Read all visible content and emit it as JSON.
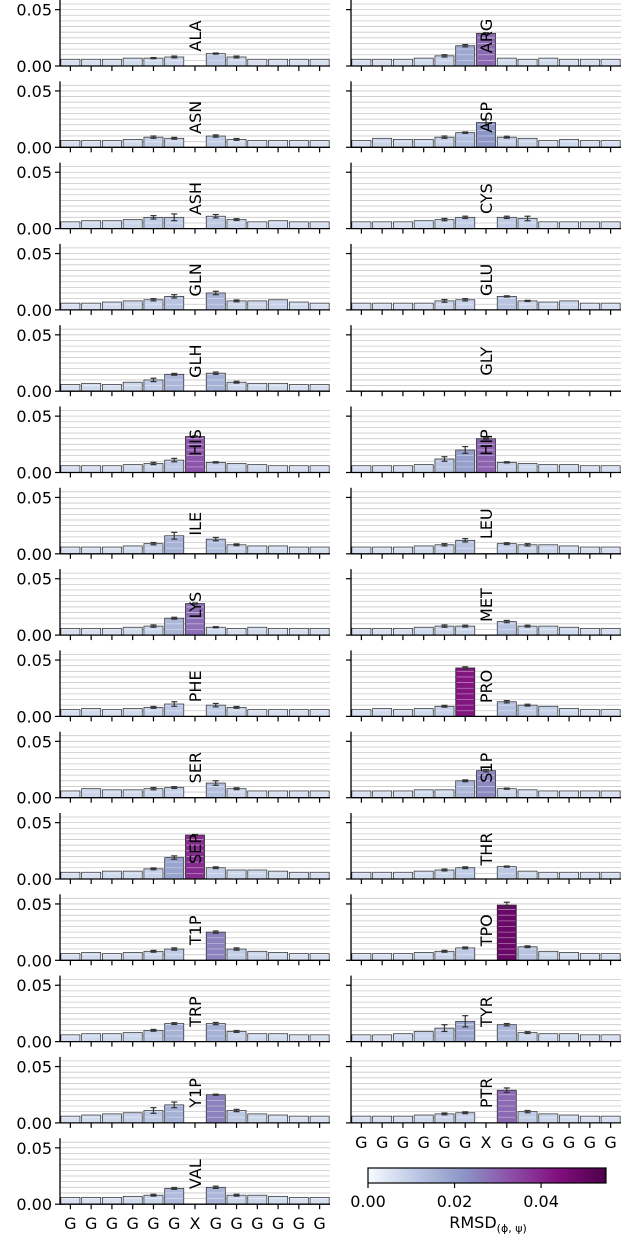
{
  "chart_data": {
    "type": "bar",
    "categories": [
      "G",
      "G",
      "G",
      "G",
      "G",
      "G",
      "X",
      "G",
      "G",
      "G",
      "G",
      "G",
      "G"
    ],
    "ylim": [
      0,
      0.055
    ],
    "yticks": [
      0.0,
      0.05
    ],
    "ytick_labels": [
      "0.00",
      "0.05"
    ],
    "grid": true,
    "colorbar": {
      "range": [
        0,
        0.055
      ],
      "ticks": [
        0.0,
        0.02,
        0.04
      ],
      "tick_labels": [
        "0.00",
        "0.02",
        "0.04"
      ],
      "label": "RMSD",
      "label_sub": "(ϕ, ψ)",
      "colors": [
        "#f7fbff",
        "#bcc8e4",
        "#8c96c6",
        "#8c4fa8",
        "#810f7c",
        "#4d004b"
      ]
    },
    "panels": [
      {
        "name": "ALA",
        "values": [
          0.006,
          0.006,
          0.006,
          0.007,
          0.007,
          0.008,
          null,
          0.011,
          0.008,
          0.006,
          0.006,
          0.006,
          0.006
        ],
        "errors": [
          0,
          0,
          0,
          0,
          0.0005,
          0.0008,
          0,
          0.0005,
          0.0008,
          0,
          0,
          0,
          0
        ]
      },
      {
        "name": "ARG",
        "values": [
          0.006,
          0.006,
          0.006,
          0.007,
          0.009,
          0.018,
          0.029,
          0.007,
          0.006,
          0.007,
          0.006,
          0.006,
          0.006
        ],
        "errors": [
          0,
          0,
          0,
          0,
          0.001,
          0.001,
          0.0005,
          0,
          0,
          0,
          0,
          0,
          0
        ]
      },
      {
        "name": "ASN",
        "values": [
          0.006,
          0.006,
          0.006,
          0.007,
          0.009,
          0.008,
          null,
          0.01,
          0.007,
          0.006,
          0.006,
          0.006,
          0.006
        ],
        "errors": [
          0,
          0,
          0,
          0,
          0.001,
          0.0008,
          0,
          0.001,
          0.0008,
          0,
          0,
          0,
          0
        ]
      },
      {
        "name": "ASP",
        "values": [
          0.006,
          0.008,
          0.007,
          0.007,
          0.009,
          0.013,
          0.022,
          0.009,
          0.008,
          0.006,
          0.007,
          0.006,
          0.006
        ],
        "errors": [
          0,
          0,
          0,
          0,
          0.001,
          0.0006,
          0.003,
          0.0008,
          0,
          0,
          0,
          0,
          0
        ]
      },
      {
        "name": "ASH",
        "values": [
          0.006,
          0.007,
          0.007,
          0.008,
          0.01,
          0.01,
          null,
          0.011,
          0.008,
          0.006,
          0.007,
          0.006,
          0.006
        ],
        "errors": [
          0,
          0,
          0,
          0,
          0.0015,
          0.003,
          0,
          0.0015,
          0.0008,
          0,
          0,
          0,
          0
        ]
      },
      {
        "name": "CYS",
        "values": [
          0.006,
          0.006,
          0.006,
          0.007,
          0.008,
          0.01,
          null,
          0.01,
          0.009,
          0.006,
          0.006,
          0.006,
          0.006
        ],
        "errors": [
          0,
          0,
          0,
          0,
          0.001,
          0.001,
          0,
          0.001,
          0.002,
          0,
          0,
          0,
          0
        ]
      },
      {
        "name": "GLN",
        "values": [
          0.006,
          0.006,
          0.007,
          0.008,
          0.009,
          0.012,
          null,
          0.015,
          0.008,
          0.008,
          0.009,
          0.007,
          0.006
        ],
        "errors": [
          0,
          0,
          0,
          0,
          0.001,
          0.0015,
          0,
          0.0015,
          0.0008,
          0,
          0,
          0,
          0
        ]
      },
      {
        "name": "GLU",
        "values": [
          0.006,
          0.006,
          0.006,
          0.006,
          0.008,
          0.009,
          null,
          0.012,
          0.008,
          0.007,
          0.008,
          0.006,
          0.006
        ],
        "errors": [
          0,
          0,
          0,
          0,
          0.0012,
          0.001,
          0,
          0.0005,
          0.0005,
          0,
          0,
          0,
          0
        ]
      },
      {
        "name": "GLH",
        "values": [
          0.006,
          0.007,
          0.006,
          0.008,
          0.01,
          0.015,
          null,
          0.016,
          0.008,
          0.007,
          0.007,
          0.006,
          0.006
        ],
        "errors": [
          0,
          0,
          0,
          0,
          0.0015,
          0.0008,
          0,
          0.001,
          0.0008,
          0,
          0,
          0,
          0
        ]
      },
      {
        "name": "GLY",
        "values": [
          0,
          0,
          0,
          0,
          0,
          0,
          null,
          0,
          0,
          0,
          0,
          0,
          0
        ],
        "errors": [
          0,
          0,
          0,
          0,
          0,
          0,
          0,
          0,
          0,
          0,
          0,
          0,
          0
        ]
      },
      {
        "name": "HIS",
        "values": [
          0.006,
          0.006,
          0.006,
          0.007,
          0.008,
          0.011,
          0.032,
          0.009,
          0.008,
          0.007,
          0.006,
          0.006,
          0.006
        ],
        "errors": [
          0,
          0,
          0,
          0,
          0.001,
          0.0015,
          0.0005,
          0.0005,
          0,
          0,
          0,
          0,
          0
        ]
      },
      {
        "name": "HIP",
        "values": [
          0.006,
          0.006,
          0.006,
          0.007,
          0.012,
          0.02,
          0.03,
          0.009,
          0.008,
          0.007,
          0.007,
          0.006,
          0.006
        ],
        "errors": [
          0,
          0,
          0,
          0,
          0.002,
          0.003,
          0.0005,
          0.0005,
          0,
          0,
          0,
          0,
          0
        ]
      },
      {
        "name": "ILE",
        "values": [
          0.006,
          0.006,
          0.006,
          0.007,
          0.009,
          0.016,
          null,
          0.013,
          0.008,
          0.007,
          0.007,
          0.006,
          0.006
        ],
        "errors": [
          0,
          0,
          0,
          0,
          0.001,
          0.003,
          0,
          0.0015,
          0.0008,
          0,
          0,
          0,
          0
        ]
      },
      {
        "name": "LEU",
        "values": [
          0.006,
          0.006,
          0.006,
          0.007,
          0.008,
          0.012,
          null,
          0.009,
          0.008,
          0.008,
          0.007,
          0.006,
          0.006
        ],
        "errors": [
          0,
          0,
          0,
          0,
          0.001,
          0.0015,
          0,
          0.0008,
          0.001,
          0,
          0,
          0,
          0
        ]
      },
      {
        "name": "LYS",
        "values": [
          0.006,
          0.006,
          0.006,
          0.007,
          0.008,
          0.015,
          0.028,
          0.007,
          0.006,
          0.007,
          0.006,
          0.006,
          0.006
        ],
        "errors": [
          0,
          0,
          0,
          0,
          0.001,
          0.0008,
          0.0005,
          0.0005,
          0,
          0,
          0,
          0,
          0
        ]
      },
      {
        "name": "MET",
        "values": [
          0.006,
          0.006,
          0.006,
          0.007,
          0.008,
          0.008,
          null,
          0.012,
          0.008,
          0.008,
          0.007,
          0.006,
          0.006
        ],
        "errors": [
          0,
          0,
          0,
          0,
          0.001,
          0.0008,
          0,
          0.001,
          0.0008,
          0,
          0,
          0,
          0
        ]
      },
      {
        "name": "PHE",
        "values": [
          0.006,
          0.007,
          0.006,
          0.007,
          0.008,
          0.011,
          null,
          0.01,
          0.008,
          0.006,
          0.006,
          0.006,
          0.006
        ],
        "errors": [
          0,
          0,
          0,
          0,
          0.0008,
          0.002,
          0,
          0.0015,
          0.0008,
          0,
          0,
          0,
          0
        ]
      },
      {
        "name": "PRO",
        "values": [
          0.006,
          0.007,
          0.006,
          0.007,
          0.009,
          0.043,
          null,
          0.013,
          0.01,
          0.009,
          0.007,
          0.006,
          0.006
        ],
        "errors": [
          0,
          0,
          0,
          0,
          0.0008,
          0.001,
          0,
          0.001,
          0.0008,
          0,
          0,
          0,
          0
        ]
      },
      {
        "name": "SER",
        "values": [
          0.006,
          0.008,
          0.007,
          0.007,
          0.008,
          0.009,
          null,
          0.013,
          0.008,
          0.006,
          0.006,
          0.006,
          0.006
        ],
        "errors": [
          0,
          0,
          0,
          0,
          0.001,
          0.0008,
          0,
          0.002,
          0.0008,
          0,
          0,
          0,
          0
        ]
      },
      {
        "name": "S1P",
        "values": [
          0.006,
          0.006,
          0.006,
          0.007,
          0.007,
          0.015,
          0.024,
          0.008,
          0.007,
          0.006,
          0.006,
          0.006,
          0.006
        ],
        "errors": [
          0,
          0,
          0,
          0,
          0,
          0.0008,
          0.001,
          0.0005,
          0,
          0,
          0,
          0,
          0
        ]
      },
      {
        "name": "SEP",
        "values": [
          0.006,
          0.006,
          0.007,
          0.007,
          0.009,
          0.019,
          0.039,
          0.01,
          0.008,
          0.008,
          0.007,
          0.006,
          0.006
        ],
        "errors": [
          0,
          0,
          0,
          0,
          0.0008,
          0.0015,
          0.0005,
          0.0008,
          0,
          0,
          0,
          0,
          0
        ]
      },
      {
        "name": "THR",
        "values": [
          0.006,
          0.006,
          0.006,
          0.007,
          0.008,
          0.01,
          null,
          0.011,
          0.007,
          0.006,
          0.006,
          0.006,
          0.006
        ],
        "errors": [
          0,
          0,
          0,
          0,
          0.0008,
          0.0008,
          0,
          0.0005,
          0,
          0,
          0,
          0,
          0
        ]
      },
      {
        "name": "T1P",
        "values": [
          0.006,
          0.007,
          0.006,
          0.007,
          0.008,
          0.01,
          null,
          0.025,
          0.01,
          0.008,
          0.007,
          0.006,
          0.006
        ],
        "errors": [
          0,
          0,
          0,
          0,
          0.0008,
          0.001,
          0,
          0.001,
          0.001,
          0,
          0,
          0,
          0
        ]
      },
      {
        "name": "TPO",
        "values": [
          0.006,
          0.006,
          0.006,
          0.007,
          0.008,
          0.011,
          null,
          0.049,
          0.012,
          0.008,
          0.007,
          0.006,
          0.006
        ],
        "errors": [
          0,
          0,
          0,
          0,
          0.0008,
          0.0008,
          0,
          0.0025,
          0.0008,
          0,
          0,
          0,
          0
        ]
      },
      {
        "name": "TRP",
        "values": [
          0.006,
          0.007,
          0.007,
          0.008,
          0.01,
          0.016,
          null,
          0.016,
          0.009,
          0.007,
          0.007,
          0.006,
          0.006
        ],
        "errors": [
          0,
          0,
          0,
          0,
          0.0008,
          0.0008,
          0,
          0.001,
          0.0008,
          0,
          0,
          0,
          0
        ]
      },
      {
        "name": "TYR",
        "values": [
          0.006,
          0.006,
          0.007,
          0.009,
          0.012,
          0.018,
          null,
          0.015,
          0.008,
          0.007,
          0.007,
          0.006,
          0.006
        ],
        "errors": [
          0,
          0,
          0,
          0,
          0.003,
          0.005,
          0,
          0.001,
          0.0008,
          0,
          0,
          0,
          0
        ]
      },
      {
        "name": "Y1P",
        "values": [
          0.006,
          0.007,
          0.008,
          0.009,
          0.011,
          0.016,
          null,
          0.025,
          0.011,
          0.008,
          0.007,
          0.006,
          0.006
        ],
        "errors": [
          0,
          0,
          0,
          0,
          0.0025,
          0.0025,
          0,
          0.0005,
          0.001,
          0,
          0,
          0,
          0
        ]
      },
      {
        "name": "PTR",
        "values": [
          0.006,
          0.006,
          0.006,
          0.007,
          0.008,
          0.009,
          null,
          0.029,
          0.01,
          0.008,
          0.007,
          0.006,
          0.006
        ],
        "errors": [
          0,
          0,
          0,
          0,
          0.0008,
          0.0008,
          0,
          0.002,
          0.001,
          0,
          0,
          0,
          0
        ]
      },
      {
        "name": "VAL",
        "values": [
          0.006,
          0.006,
          0.006,
          0.007,
          0.008,
          0.014,
          null,
          0.015,
          0.008,
          0.008,
          0.007,
          0.006,
          0.006
        ],
        "errors": [
          0,
          0,
          0,
          0,
          0.0008,
          0.0008,
          0,
          0.001,
          0.0008,
          0,
          0,
          0,
          0
        ]
      }
    ]
  }
}
